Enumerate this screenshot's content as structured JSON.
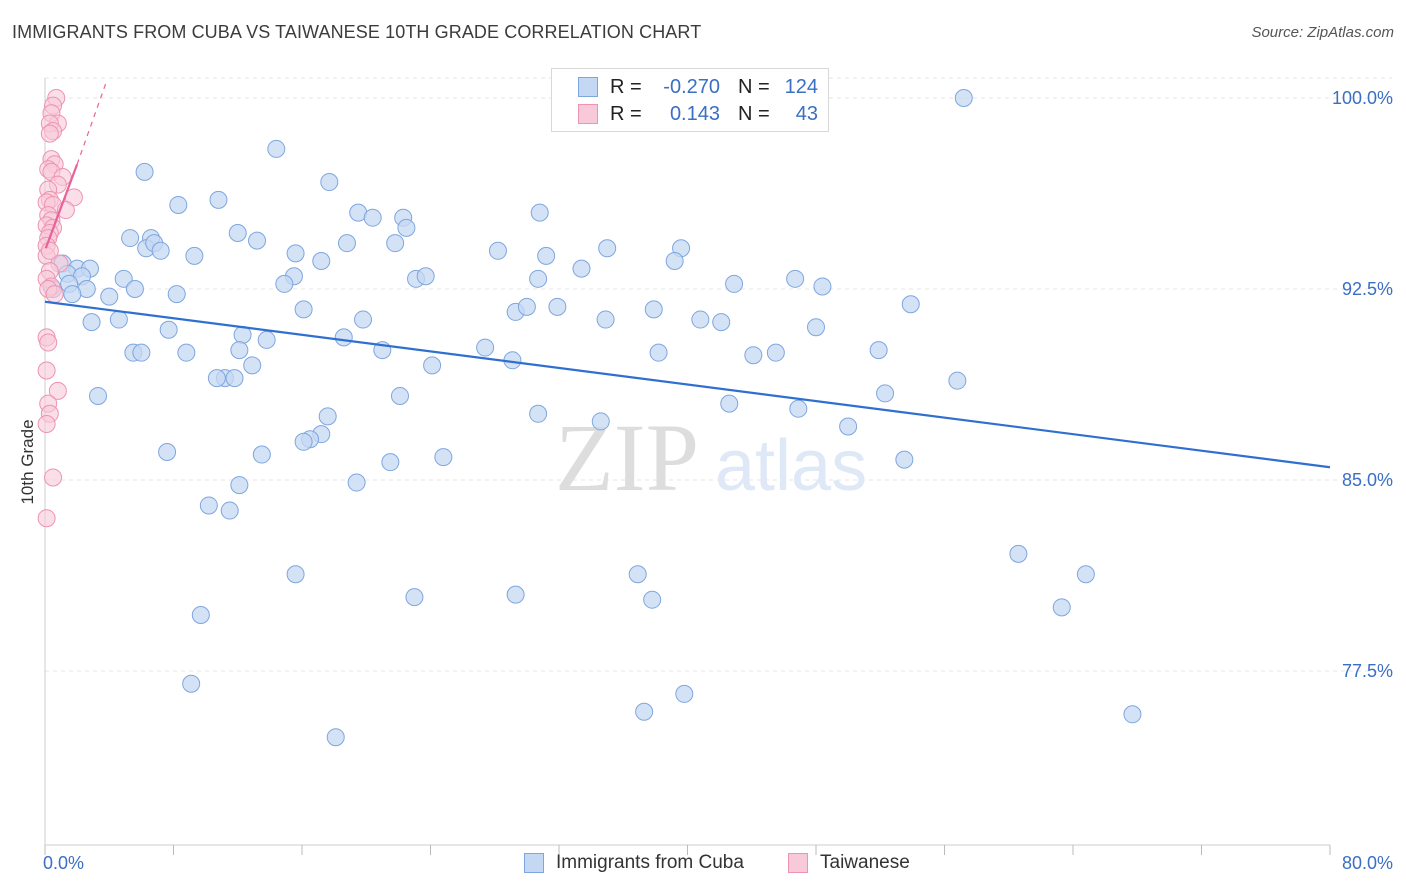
{
  "title": "IMMIGRANTS FROM CUBA VS TAIWANESE 10TH GRADE CORRELATION CHART",
  "source": "Source: ZipAtlas.com",
  "watermark": {
    "zip": "ZIP",
    "atlas": "atlas"
  },
  "legend": {
    "rows": [
      {
        "r_label": "R =",
        "r_value": "-0.270",
        "n_label": "N =",
        "n_value": "124"
      },
      {
        "r_label": "R =",
        "r_value": "0.143",
        "n_label": "N =",
        "n_value": "43"
      }
    ]
  },
  "bottom_legend": {
    "cuba": "Immigrants from Cuba",
    "taiwanese": "Taiwanese"
  },
  "colors": {
    "cuba_fill": "#c5d8f3",
    "cuba_stroke": "#7ea6e0",
    "cuba_line": "#2f6fcf",
    "taiwan_fill": "#f8c9d8",
    "taiwan_stroke": "#ee93b1",
    "taiwan_line": "#e8629a",
    "axis_label": "#3a6fc4",
    "grid": "#e6e6e6"
  },
  "chart_data": {
    "type": "scatter",
    "title": "IMMIGRANTS FROM CUBA VS TAIWANESE 10TH GRADE CORRELATION CHART",
    "xlabel": "",
    "ylabel": "10th Grade",
    "xlim": [
      0,
      80
    ],
    "ylim": [
      71.5,
      101
    ],
    "x_tick_labels": [
      {
        "value": 0,
        "label": "0.0%"
      },
      {
        "value": 80,
        "label": "80.0%"
      }
    ],
    "y_tick_labels": [
      {
        "value": 100,
        "label": "100.0%"
      },
      {
        "value": 92.5,
        "label": "92.5%"
      },
      {
        "value": 85,
        "label": "85.0%"
      },
      {
        "value": 77.5,
        "label": "77.5%"
      }
    ],
    "series": [
      {
        "name": "Immigrants from Cuba",
        "r": -0.27,
        "n": 124,
        "trend": {
          "x": [
            0,
            80
          ],
          "y": [
            92.0,
            85.5
          ]
        },
        "points": [
          [
            57.2,
            100.0
          ],
          [
            14.4,
            98.0
          ],
          [
            6.2,
            97.1
          ],
          [
            17.7,
            96.7
          ],
          [
            10.8,
            96.0
          ],
          [
            8.3,
            95.8
          ],
          [
            19.5,
            95.5
          ],
          [
            30.8,
            95.5
          ],
          [
            20.4,
            95.3
          ],
          [
            22.3,
            95.3
          ],
          [
            22.5,
            94.9
          ],
          [
            12.0,
            94.7
          ],
          [
            5.3,
            94.5
          ],
          [
            6.6,
            94.5
          ],
          [
            13.2,
            94.4
          ],
          [
            18.8,
            94.3
          ],
          [
            21.8,
            94.3
          ],
          [
            6.3,
            94.1
          ],
          [
            6.8,
            94.3
          ],
          [
            7.2,
            94.0
          ],
          [
            15.6,
            93.9
          ],
          [
            28.2,
            94.0
          ],
          [
            35.0,
            94.1
          ],
          [
            39.6,
            94.1
          ],
          [
            31.2,
            93.8
          ],
          [
            9.3,
            93.8
          ],
          [
            17.2,
            93.6
          ],
          [
            39.2,
            93.6
          ],
          [
            33.4,
            93.3
          ],
          [
            1.1,
            93.5
          ],
          [
            2.0,
            93.3
          ],
          [
            2.8,
            93.3
          ],
          [
            1.4,
            93.1
          ],
          [
            2.3,
            93.0
          ],
          [
            4.9,
            92.9
          ],
          [
            23.1,
            92.9
          ],
          [
            23.7,
            93.0
          ],
          [
            15.5,
            93.0
          ],
          [
            30.7,
            92.9
          ],
          [
            46.7,
            92.9
          ],
          [
            42.9,
            92.7
          ],
          [
            1.5,
            92.7
          ],
          [
            2.6,
            92.5
          ],
          [
            5.6,
            92.5
          ],
          [
            14.9,
            92.7
          ],
          [
            0.5,
            92.5
          ],
          [
            8.2,
            92.3
          ],
          [
            48.4,
            92.6
          ],
          [
            4.0,
            92.2
          ],
          [
            1.7,
            92.3
          ],
          [
            53.9,
            91.9
          ],
          [
            31.9,
            91.8
          ],
          [
            29.3,
            91.6
          ],
          [
            37.9,
            91.7
          ],
          [
            16.1,
            91.7
          ],
          [
            30.0,
            91.8
          ],
          [
            4.6,
            91.3
          ],
          [
            2.9,
            91.2
          ],
          [
            19.8,
            91.3
          ],
          [
            34.9,
            91.3
          ],
          [
            40.8,
            91.3
          ],
          [
            42.1,
            91.2
          ],
          [
            48.0,
            91.0
          ],
          [
            7.7,
            90.9
          ],
          [
            12.3,
            90.7
          ],
          [
            13.8,
            90.5
          ],
          [
            18.6,
            90.6
          ],
          [
            5.5,
            90.0
          ],
          [
            6.0,
            90.0
          ],
          [
            12.1,
            90.1
          ],
          [
            27.4,
            90.2
          ],
          [
            21.0,
            90.1
          ],
          [
            44.1,
            89.9
          ],
          [
            45.5,
            90.0
          ],
          [
            38.2,
            90.0
          ],
          [
            51.9,
            90.1
          ],
          [
            8.8,
            90.0
          ],
          [
            29.1,
            89.7
          ],
          [
            12.9,
            89.5
          ],
          [
            24.1,
            89.5
          ],
          [
            11.2,
            89.0
          ],
          [
            10.7,
            89.0
          ],
          [
            11.8,
            89.0
          ],
          [
            56.8,
            88.9
          ],
          [
            3.3,
            88.3
          ],
          [
            22.1,
            88.3
          ],
          [
            52.3,
            88.4
          ],
          [
            42.6,
            88.0
          ],
          [
            46.9,
            87.8
          ],
          [
            30.7,
            87.6
          ],
          [
            17.6,
            87.5
          ],
          [
            34.6,
            87.3
          ],
          [
            50.0,
            87.1
          ],
          [
            17.2,
            86.8
          ],
          [
            16.5,
            86.6
          ],
          [
            16.1,
            86.5
          ],
          [
            7.6,
            86.1
          ],
          [
            13.5,
            86.0
          ],
          [
            24.8,
            85.9
          ],
          [
            21.5,
            85.7
          ],
          [
            53.5,
            85.8
          ],
          [
            12.1,
            84.8
          ],
          [
            19.4,
            84.9
          ],
          [
            10.2,
            84.0
          ],
          [
            11.5,
            83.8
          ],
          [
            60.6,
            82.1
          ],
          [
            15.6,
            81.3
          ],
          [
            36.9,
            81.3
          ],
          [
            64.8,
            81.3
          ],
          [
            29.3,
            80.5
          ],
          [
            23.0,
            80.4
          ],
          [
            37.8,
            80.3
          ],
          [
            63.3,
            80.0
          ],
          [
            9.7,
            79.7
          ],
          [
            9.1,
            77.0
          ],
          [
            39.8,
            76.6
          ],
          [
            37.3,
            75.9
          ],
          [
            67.7,
            75.8
          ],
          [
            18.1,
            74.9
          ]
        ]
      },
      {
        "name": "Taiwanese",
        "r": 0.143,
        "n": 43,
        "trend": {
          "x": [
            0.05,
            2.0
          ],
          "y": [
            94.1,
            97.4
          ]
        },
        "trend_extension": {
          "x": [
            2.0,
            3.8
          ],
          "y": [
            97.4,
            100.6
          ]
        },
        "points": [
          [
            0.7,
            100.0
          ],
          [
            0.5,
            99.7
          ],
          [
            0.4,
            99.4
          ],
          [
            0.8,
            99.0
          ],
          [
            0.3,
            99.0
          ],
          [
            0.5,
            98.7
          ],
          [
            0.3,
            98.6
          ],
          [
            0.4,
            97.6
          ],
          [
            0.6,
            97.4
          ],
          [
            0.2,
            97.2
          ],
          [
            0.4,
            97.1
          ],
          [
            1.1,
            96.9
          ],
          [
            0.8,
            96.6
          ],
          [
            0.2,
            96.4
          ],
          [
            1.8,
            96.1
          ],
          [
            0.3,
            96.0
          ],
          [
            0.1,
            95.9
          ],
          [
            0.5,
            95.8
          ],
          [
            1.3,
            95.6
          ],
          [
            0.2,
            95.4
          ],
          [
            0.4,
            95.2
          ],
          [
            0.1,
            95.0
          ],
          [
            0.5,
            94.9
          ],
          [
            0.3,
            94.7
          ],
          [
            0.2,
            94.5
          ],
          [
            0.1,
            94.2
          ],
          [
            0.1,
            93.8
          ],
          [
            0.9,
            93.5
          ],
          [
            0.3,
            93.2
          ],
          [
            0.1,
            92.9
          ],
          [
            0.4,
            92.6
          ],
          [
            0.2,
            92.5
          ],
          [
            0.6,
            92.3
          ],
          [
            0.1,
            90.6
          ],
          [
            0.2,
            90.4
          ],
          [
            0.1,
            89.3
          ],
          [
            0.8,
            88.5
          ],
          [
            0.2,
            88.0
          ],
          [
            0.3,
            87.6
          ],
          [
            0.1,
            87.2
          ],
          [
            0.5,
            85.1
          ],
          [
            0.1,
            83.5
          ],
          [
            0.3,
            94.0
          ]
        ]
      }
    ]
  }
}
